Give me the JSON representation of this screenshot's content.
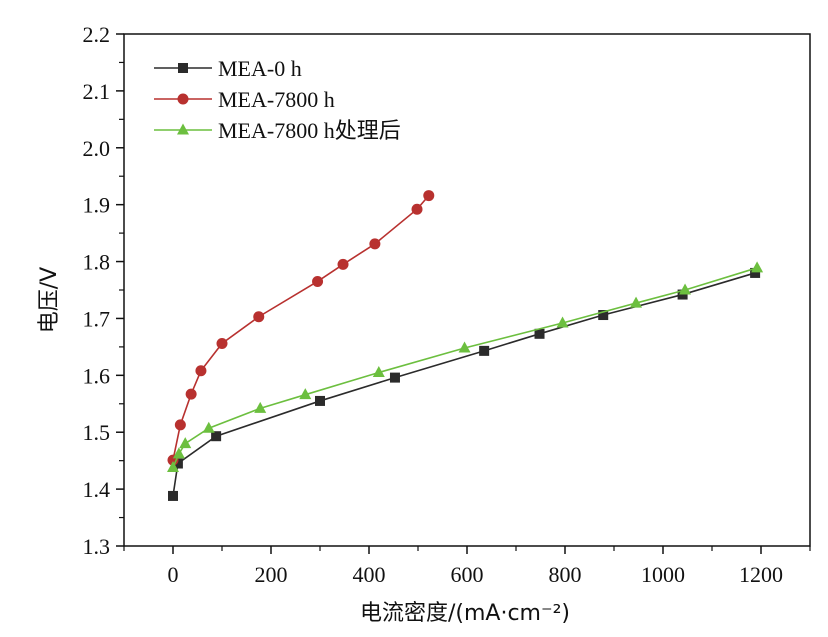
{
  "chart_data": {
    "type": "line",
    "xlabel": "电流密度/(mA·cm⁻²)",
    "ylabel": "电压/V",
    "xlim": [
      -100,
      1300
    ],
    "ylim": [
      1.3,
      2.2
    ],
    "x_ticks": [
      0,
      200,
      400,
      600,
      800,
      1000,
      1200
    ],
    "x_tick_labels": [
      "0",
      "200",
      "400",
      "600",
      "800",
      "1000",
      "1200"
    ],
    "y_ticks": [
      1.3,
      1.4,
      1.5,
      1.6,
      1.7,
      1.8,
      1.9,
      2.0,
      2.1,
      2.2
    ],
    "y_tick_labels": [
      "1.3",
      "1.4",
      "1.5",
      "1.6",
      "1.7",
      "1.8",
      "1.9",
      "2.0",
      "2.1",
      "2.2"
    ],
    "grid": false,
    "legend_position": "top-left",
    "series": [
      {
        "name": "MEA-0 h",
        "color": "#2b2b2b",
        "marker": "square",
        "x": [
          0,
          10,
          88,
          300,
          453,
          635,
          748,
          878,
          1040,
          1188
        ],
        "y": [
          1.388,
          1.445,
          1.493,
          1.555,
          1.596,
          1.643,
          1.673,
          1.706,
          1.742,
          1.78
        ]
      },
      {
        "name": "MEA-7800 h",
        "color": "#b8312f",
        "marker": "circle",
        "x": [
          0,
          15,
          37,
          57,
          100,
          175,
          295,
          347,
          412,
          498,
          522
        ],
        "y": [
          1.451,
          1.513,
          1.567,
          1.608,
          1.656,
          1.703,
          1.765,
          1.795,
          1.831,
          1.892,
          1.916
        ]
      },
      {
        "name": "MEA-7800 h处理后",
        "color": "#6cbf3f",
        "marker": "triangle",
        "x": [
          0,
          12,
          25,
          73,
          178,
          270,
          420,
          595,
          795,
          945,
          1045,
          1192
        ],
        "y": [
          1.438,
          1.462,
          1.48,
          1.507,
          1.542,
          1.566,
          1.605,
          1.648,
          1.692,
          1.727,
          1.75,
          1.789
        ]
      }
    ]
  }
}
